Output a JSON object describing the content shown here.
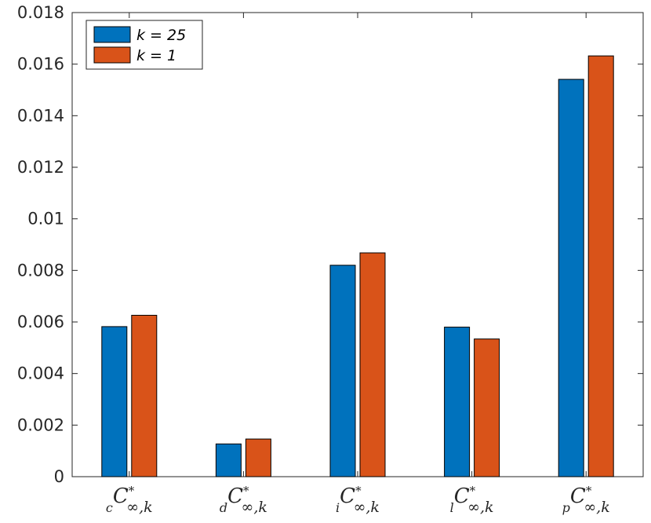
{
  "chart_data": {
    "type": "bar",
    "categories": [
      {
        "sub": "c",
        "main": "C",
        "sup": "*",
        "idx": "∞,k"
      },
      {
        "sub": "d",
        "main": "C",
        "sup": "*",
        "idx": "∞,k"
      },
      {
        "sub": "i",
        "main": "C",
        "sup": "*",
        "idx": "∞,k"
      },
      {
        "sub": "l",
        "main": "C",
        "sup": "*",
        "idx": "∞,k"
      },
      {
        "sub": "p",
        "main": "C",
        "sup": "*",
        "idx": "∞,k"
      }
    ],
    "series": [
      {
        "name": "k = 25",
        "color": "#0072BD",
        "values": [
          0.00582,
          0.00127,
          0.0082,
          0.0058,
          0.01541
        ]
      },
      {
        "name": "k = 1",
        "color": "#D95319",
        "values": [
          0.00626,
          0.00146,
          0.00868,
          0.00534,
          0.01632
        ]
      }
    ],
    "ylim": [
      0,
      0.018
    ],
    "yticks": [
      "0",
      "0.002",
      "0.004",
      "0.006",
      "0.008",
      "0.01",
      "0.012",
      "0.014",
      "0.016",
      "0.018"
    ],
    "ytick_values": [
      0,
      0.002,
      0.004,
      0.006,
      0.008,
      0.01,
      0.012,
      0.014,
      0.016,
      0.018
    ],
    "legend_position": "top-left",
    "grid": false
  }
}
